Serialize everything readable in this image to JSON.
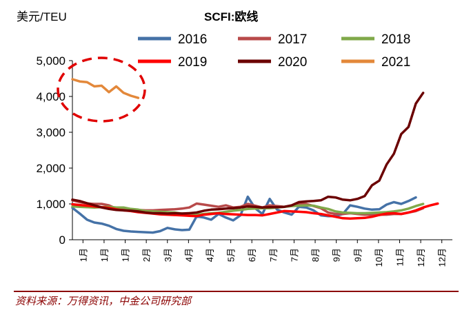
{
  "chart_data": {
    "type": "line",
    "title": "SCFI:欧线",
    "ylabel": "美元/TEU",
    "xlabel": "",
    "ylim": [
      0,
      5000
    ],
    "y_ticks": [
      "0",
      "1,000",
      "2,000",
      "3,000",
      "4,000",
      "5,000"
    ],
    "y_tick_values": [
      0,
      1000,
      2000,
      3000,
      4000,
      5000
    ],
    "x_tick_labels": [
      "1月",
      "1月",
      "1月",
      "2月",
      "3月",
      "4月",
      "4月",
      "5月",
      "6月",
      "7月",
      "7月",
      "8月",
      "9月",
      "9月",
      "10月",
      "11月",
      "12月",
      "12月"
    ],
    "x_range": [
      0,
      52
    ],
    "grid": false,
    "legend_position": "top",
    "series": [
      {
        "name": "2016",
        "color": "#4572a7",
        "values": [
          890,
          730,
          560,
          480,
          450,
          390,
          300,
          250,
          230,
          220,
          210,
          200,
          240,
          330,
          290,
          270,
          280,
          650,
          620,
          560,
          720,
          620,
          540,
          680,
          1200,
          880,
          720,
          1140,
          840,
          760,
          700,
          920,
          900,
          820,
          680,
          660,
          660,
          720,
          960,
          920,
          870,
          840,
          850,
          980,
          1050,
          1000,
          1080,
          1180
        ]
      },
      {
        "name": "2017",
        "color": "#b84a4a",
        "values": [
          1100,
          1050,
          1010,
          1000,
          1000,
          960,
          870,
          860,
          850,
          830,
          820,
          820,
          830,
          840,
          850,
          870,
          900,
          1010,
          980,
          950,
          920,
          960,
          900,
          920,
          1000,
          950,
          900,
          960,
          940,
          920,
          950,
          1000,
          1000,
          940,
          880,
          760,
          720,
          720,
          740,
          720,
          700,
          700,
          700,
          700,
          720,
          720,
          760,
          800,
          880
        ]
      },
      {
        "name": "2018",
        "color": "#80a94a",
        "values": [
          930,
          920,
          910,
          900,
          910,
          920,
          900,
          900,
          860,
          840,
          800,
          790,
          780,
          770,
          760,
          730,
          740,
          700,
          720,
          740,
          750,
          780,
          810,
          830,
          860,
          870,
          880,
          880,
          900,
          920,
          940,
          950,
          960,
          950,
          900,
          860,
          790,
          760,
          750,
          740,
          740,
          750,
          760,
          770,
          790,
          820,
          870,
          940,
          1000
        ]
      },
      {
        "name": "2019",
        "color": "#ff0000",
        "values": [
          990,
          970,
          950,
          930,
          910,
          890,
          850,
          820,
          800,
          770,
          750,
          730,
          710,
          700,
          690,
          680,
          670,
          660,
          700,
          720,
          740,
          720,
          710,
          700,
          690,
          690,
          680,
          720,
          760,
          800,
          790,
          780,
          770,
          740,
          720,
          680,
          640,
          600,
          590,
          600,
          610,
          640,
          690,
          730,
          740,
          720,
          760,
          820,
          900,
          960,
          1010
        ]
      },
      {
        "name": "2020",
        "color": "#6b0000",
        "values": [
          1120,
          1080,
          1020,
          960,
          900,
          860,
          830,
          820,
          810,
          790,
          760,
          740,
          740,
          730,
          740,
          730,
          740,
          760,
          810,
          840,
          850,
          870,
          880,
          900,
          930,
          920,
          900,
          910,
          910,
          920,
          960,
          1050,
          1070,
          1080,
          1100,
          1200,
          1180,
          1120,
          1100,
          1140,
          1220,
          1520,
          1650,
          2100,
          2400,
          2950,
          3150,
          3800,
          4100
        ]
      },
      {
        "name": "2021",
        "color": "#e3883a",
        "values": [
          4480,
          4420,
          4400,
          4280,
          4300,
          4120,
          4280,
          4100,
          4020,
          3960
        ]
      }
    ]
  },
  "source": "资料来源：万得资讯，中金公司研究部"
}
